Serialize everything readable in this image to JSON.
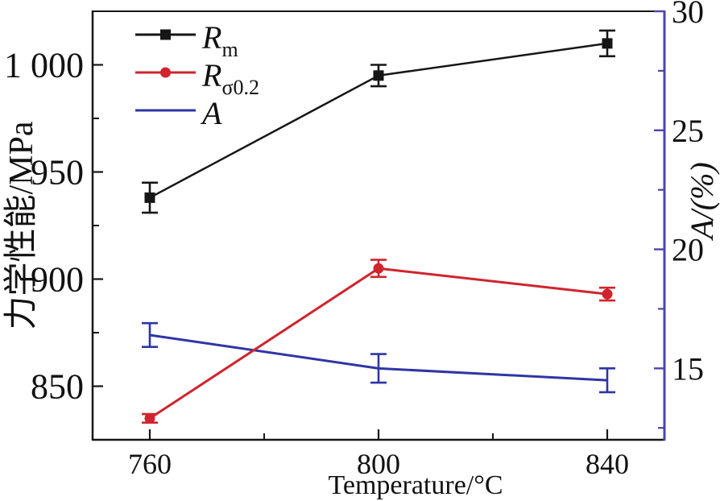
{
  "figure": {
    "background": "#ffffff"
  },
  "chart_data": {
    "type": "line",
    "title": "",
    "xlabel": "Temperature/°C",
    "ylabel_left": "力学性能/MPa",
    "ylabel_right": "A/(%)",
    "x": [
      760,
      800,
      840
    ],
    "x_tick_labels": [
      "760",
      "800",
      "840"
    ],
    "x_range": [
      750,
      850
    ],
    "x_minor_ticks": [
      780,
      820
    ],
    "y_left_range": [
      825,
      1025
    ],
    "y_left_major_ticks": [
      850,
      900,
      950,
      1000
    ],
    "y_left_tick_labels": [
      "850",
      "900",
      "950",
      "1 000"
    ],
    "y_left_minor_ticks": [
      875,
      925,
      975
    ],
    "y_right_range": [
      12,
      30
    ],
    "y_right_major_ticks": [
      15,
      20,
      25,
      30
    ],
    "y_right_tick_labels": [
      "15",
      "20",
      "25",
      "30"
    ],
    "y_right_minor_ticks": [
      12.5,
      17.5,
      22.5,
      27.5
    ],
    "grid": false,
    "legend_position": "top-left",
    "axis_colors": {
      "left": "#161616",
      "bottom": "#161616",
      "top": "#161616",
      "right": "#4c44aa"
    },
    "series": [
      {
        "name": "R_m",
        "legend_base": "R",
        "legend_sub": "m",
        "axis": "left",
        "color": "#161616",
        "marker": "square",
        "values": [
          938,
          995,
          1010
        ],
        "errors": [
          7,
          5,
          6
        ]
      },
      {
        "name": "R_σ0.2",
        "legend_base": "R",
        "legend_sub": "σ0.2",
        "axis": "left",
        "color": "#d0242e",
        "marker": "circle",
        "values": [
          835,
          905,
          893
        ],
        "errors": [
          2,
          4,
          3
        ]
      },
      {
        "name": "A",
        "legend_base": "A",
        "legend_sub": "",
        "axis": "right",
        "color": "#2f35a5",
        "marker": "none",
        "values": [
          16.4,
          15.0,
          14.5
        ],
        "errors": [
          0.5,
          0.6,
          0.5
        ]
      }
    ]
  }
}
